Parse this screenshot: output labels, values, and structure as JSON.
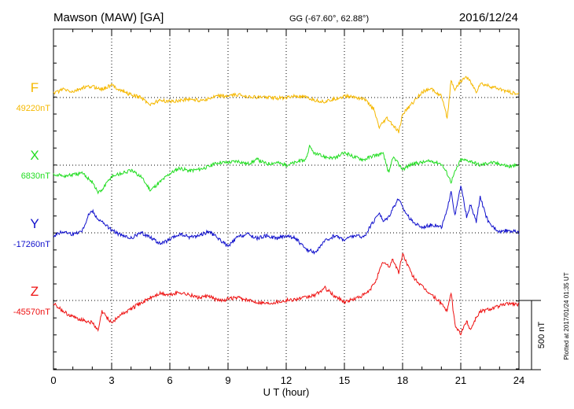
{
  "header": {
    "station": "Mawson (MAW)  [GA]",
    "coords": "GG (-67.60°,  62.88°)",
    "date": "2016/12/24"
  },
  "footer": {
    "plotted": "Plotted at 2017/01/24 01:35 UT"
  },
  "colors": {
    "F": "#f5b800",
    "X": "#22dd22",
    "Y": "#1010cc",
    "Z": "#ee1111",
    "axis": "#000000"
  },
  "chart_data": {
    "type": "line",
    "title": "Mawson (MAW)  [GA]",
    "xlabel": "U T (hour)",
    "ylabel": "",
    "xlim": [
      0,
      24
    ],
    "x_ticks": [
      "0",
      "3",
      "6",
      "9",
      "12",
      "15",
      "18",
      "21",
      "24"
    ],
    "scale_bar": {
      "label": "500 nT",
      "value_nT": 500
    },
    "grid": true,
    "series": [
      {
        "name": "F",
        "baseline_label": "49220nT",
        "baseline_nT": 49220,
        "x": [
          0,
          0.5,
          1,
          1.5,
          2,
          2.5,
          3,
          3.5,
          4,
          4.5,
          5,
          5.5,
          6,
          6.5,
          7,
          7.5,
          8,
          8.5,
          9,
          9.5,
          10,
          10.5,
          11,
          11.5,
          12,
          12.5,
          13,
          13.5,
          14,
          14.5,
          15,
          15.5,
          16,
          16.5,
          16.8,
          17,
          17.2,
          17.5,
          17.8,
          18,
          18.5,
          19,
          19.5,
          20,
          20.3,
          20.5,
          20.7,
          21,
          21.3,
          21.5,
          21.8,
          22,
          22.5,
          23,
          23.5,
          24
        ],
        "values": [
          30,
          60,
          40,
          70,
          80,
          60,
          90,
          50,
          20,
          0,
          -50,
          -20,
          -30,
          -20,
          -10,
          -20,
          -10,
          10,
          10,
          20,
          10,
          0,
          5,
          -5,
          0,
          10,
          0,
          -20,
          -30,
          -10,
          10,
          5,
          -10,
          -80,
          -220,
          -180,
          -150,
          -200,
          -250,
          -120,
          -40,
          40,
          60,
          10,
          -150,
          120,
          60,
          120,
          150,
          110,
          40,
          100,
          80,
          60,
          40,
          20
        ]
      },
      {
        "name": "X",
        "baseline_label": "6830nT",
        "baseline_nT": 6830,
        "x": [
          0,
          0.5,
          1,
          1.5,
          2,
          2.3,
          2.5,
          3,
          3.5,
          4,
          4.5,
          5,
          5.5,
          6,
          6.5,
          7,
          7.5,
          8,
          8.5,
          9,
          9.5,
          10,
          10.5,
          11,
          11.5,
          12,
          12.5,
          13,
          13.2,
          13.5,
          14,
          14.5,
          15,
          15.5,
          16,
          16.5,
          17,
          17.3,
          17.5,
          18,
          18.5,
          19,
          19.5,
          20,
          20.3,
          20.5,
          20.7,
          21,
          21.5,
          22,
          22.5,
          23,
          23.5,
          24
        ],
        "values": [
          -60,
          -80,
          -70,
          -60,
          -120,
          -200,
          -180,
          -80,
          -60,
          -40,
          -80,
          -180,
          -120,
          -60,
          -20,
          -40,
          -30,
          -10,
          20,
          20,
          30,
          10,
          40,
          10,
          20,
          0,
          20,
          40,
          130,
          80,
          60,
          50,
          90,
          60,
          40,
          70,
          80,
          -60,
          60,
          -30,
          10,
          20,
          30,
          10,
          -60,
          -120,
          -50,
          40,
          30,
          0,
          20,
          10,
          -10,
          0
        ]
      },
      {
        "name": "Y",
        "baseline_label": "-17260nT",
        "baseline_nT": -17260,
        "x": [
          0,
          0.5,
          1,
          1.5,
          1.8,
          2,
          2.3,
          2.5,
          3,
          3.5,
          4,
          4.5,
          5,
          5.5,
          6,
          6.5,
          7,
          7.5,
          8,
          8.5,
          9,
          9.5,
          10,
          10.5,
          11,
          11.5,
          12,
          12.5,
          13,
          13.5,
          14,
          14.5,
          15,
          15.5,
          16,
          16.5,
          16.8,
          17,
          17.3,
          17.5,
          17.8,
          18,
          18.5,
          19,
          19.5,
          20,
          20.3,
          20.5,
          20.7,
          21,
          21.3,
          21.5,
          21.8,
          22,
          22.3,
          22.5,
          23,
          23.5,
          24
        ],
        "values": [
          -20,
          10,
          -10,
          20,
          130,
          160,
          100,
          80,
          20,
          -20,
          -40,
          0,
          -30,
          -80,
          -50,
          -10,
          -30,
          -20,
          10,
          -40,
          -100,
          -30,
          -10,
          -40,
          -20,
          -40,
          -20,
          -40,
          -120,
          -140,
          -60,
          -20,
          -50,
          -20,
          -30,
          80,
          150,
          80,
          120,
          180,
          250,
          180,
          80,
          40,
          60,
          40,
          160,
          310,
          120,
          340,
          120,
          200,
          80,
          260,
          120,
          60,
          10,
          20,
          0
        ]
      },
      {
        "name": "Z",
        "baseline_label": "-45570nT",
        "baseline_nT": -45570,
        "x": [
          0,
          0.5,
          1,
          1.5,
          2,
          2.3,
          2.5,
          3,
          3.5,
          4,
          4.5,
          5,
          5.5,
          6,
          6.5,
          7,
          7.5,
          8,
          8.5,
          9,
          9.5,
          10,
          10.5,
          11,
          11.5,
          12,
          12.5,
          13,
          13.5,
          14,
          14.5,
          15,
          15.5,
          16,
          16.3,
          16.6,
          16.8,
          17,
          17.3,
          17.5,
          17.8,
          18,
          18.5,
          19,
          19.5,
          20,
          20.3,
          20.5,
          20.7,
          21,
          21.3,
          21.5,
          21.8,
          22,
          22.5,
          23,
          23.5,
          24
        ],
        "values": [
          -20,
          -80,
          -120,
          -140,
          -160,
          -220,
          -80,
          -160,
          -100,
          -60,
          -20,
          20,
          50,
          40,
          60,
          40,
          20,
          30,
          0,
          10,
          20,
          0,
          -10,
          -20,
          -10,
          0,
          10,
          20,
          40,
          90,
          30,
          -10,
          10,
          40,
          70,
          140,
          210,
          280,
          240,
          300,
          200,
          340,
          180,
          100,
          40,
          -20,
          -80,
          60,
          -180,
          -240,
          -150,
          -210,
          -120,
          -80,
          -60,
          -40,
          -20,
          -30
        ]
      }
    ]
  }
}
